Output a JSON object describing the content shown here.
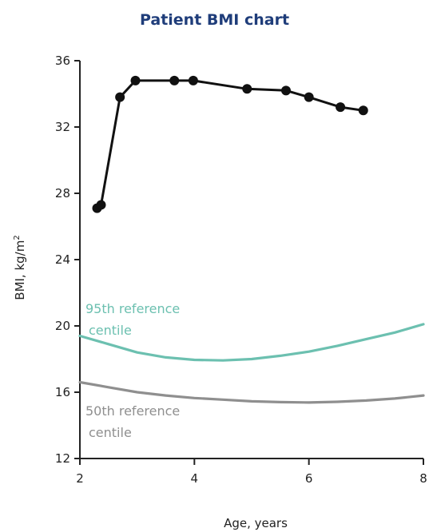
{
  "chart_data": {
    "type": "line",
    "title": "Patient BMI chart",
    "xlabel": "Age, years",
    "ylabel": "BMI, kg/m",
    "ylabel_superscript": "2",
    "xlim": [
      2,
      8
    ],
    "ylim": [
      12,
      36
    ],
    "xticks": [
      2,
      4,
      6,
      8
    ],
    "yticks": [
      12,
      16,
      20,
      24,
      28,
      32,
      36
    ],
    "grid": false,
    "series": [
      {
        "name": "",
        "color": "#111111",
        "markers": true,
        "x": [
          2.3,
          2.37,
          2.7,
          2.97,
          3.65,
          3.98,
          4.92,
          5.6,
          6.0,
          6.55,
          6.95
        ],
        "y": [
          27.1,
          27.3,
          33.8,
          34.8,
          34.8,
          34.8,
          34.3,
          34.2,
          33.8,
          33.2,
          33.0
        ]
      },
      {
        "name": "95th reference centile",
        "color": "#6cc0b0",
        "markers": false,
        "x": [
          2,
          2.5,
          3,
          3.5,
          4,
          4.5,
          5,
          5.5,
          6,
          6.5,
          7,
          7.5,
          8
        ],
        "y": [
          19.4,
          18.9,
          18.4,
          18.1,
          17.95,
          17.92,
          18.0,
          18.2,
          18.45,
          18.8,
          19.2,
          19.6,
          20.1
        ]
      },
      {
        "name": "50th reference centile",
        "color": "#8f8f8f",
        "markers": false,
        "x": [
          2,
          2.5,
          3,
          3.5,
          4,
          4.5,
          5,
          5.5,
          6,
          6.5,
          7,
          7.5,
          8
        ],
        "y": [
          16.6,
          16.3,
          16.0,
          15.8,
          15.65,
          15.55,
          15.45,
          15.4,
          15.38,
          15.42,
          15.5,
          15.62,
          15.8
        ]
      }
    ],
    "annotations": [
      {
        "series": 1,
        "lines": [
          "95th reference",
          "centile"
        ]
      },
      {
        "series": 2,
        "lines": [
          "50th reference",
          "centile"
        ]
      }
    ]
  }
}
